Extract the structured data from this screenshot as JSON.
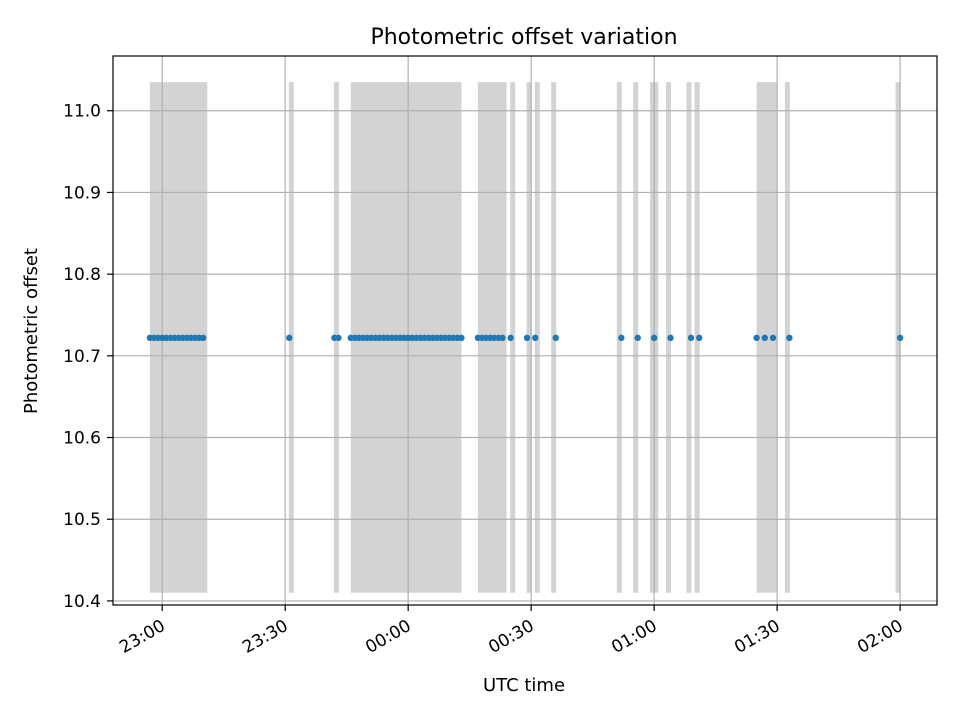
{
  "chart_data": {
    "type": "scatter",
    "title": "Photometric offset variation",
    "xlabel": "UTC time",
    "ylabel": "Photometric offset",
    "xlim": [
      "22:48",
      "02:09"
    ],
    "ylim": [
      10.395,
      11.067
    ],
    "grid": true,
    "x_ticks": [
      "23:00",
      "23:30",
      "00:00",
      "00:30",
      "01:00",
      "01:30",
      "02:00"
    ],
    "y_ticks": [
      "11.0",
      "10.9",
      "10.8",
      "10.7",
      "10.6",
      "10.5",
      "10.4"
    ],
    "shaded_band_y": [
      10.41,
      11.035
    ],
    "shaded_intervals": [
      [
        "22:57",
        "23:11"
      ],
      [
        "23:31",
        "23:32"
      ],
      [
        "23:42",
        "23:43"
      ],
      [
        "23:46",
        "00:13"
      ],
      [
        "00:17",
        "00:24"
      ],
      [
        "00:25",
        "00:26"
      ],
      [
        "00:29",
        "00:30"
      ],
      [
        "00:31",
        "00:32"
      ],
      [
        "00:35",
        "00:36"
      ],
      [
        "00:51",
        "00:52"
      ],
      [
        "00:55",
        "00:56"
      ],
      [
        "00:59",
        "01:01"
      ],
      [
        "01:03",
        "01:04"
      ],
      [
        "01:08",
        "01:09"
      ],
      [
        "01:10",
        "01:11"
      ],
      [
        "01:25",
        "01:30"
      ],
      [
        "01:32",
        "01:33"
      ],
      [
        "01:59",
        "02:00"
      ]
    ],
    "series": [
      {
        "color": "#1f77b4",
        "x": [
          "22:57",
          "22:58",
          "22:59",
          "23:00",
          "23:01",
          "23:02",
          "23:03",
          "23:04",
          "23:05",
          "23:06",
          "23:07",
          "23:08",
          "23:09",
          "23:10",
          "23:31",
          "23:42",
          "23:43",
          "23:46",
          "23:47",
          "23:48",
          "23:49",
          "23:50",
          "23:51",
          "23:52",
          "23:53",
          "23:54",
          "23:55",
          "23:56",
          "23:57",
          "23:58",
          "23:59",
          "00:00",
          "00:01",
          "00:02",
          "00:03",
          "00:04",
          "00:05",
          "00:06",
          "00:07",
          "00:08",
          "00:09",
          "00:10",
          "00:11",
          "00:12",
          "00:13",
          "00:17",
          "00:18",
          "00:19",
          "00:20",
          "00:21",
          "00:22",
          "00:23",
          "00:25",
          "00:29",
          "00:31",
          "00:36",
          "00:52",
          "00:56",
          "01:00",
          "01:04",
          "01:09",
          "01:11",
          "01:25",
          "01:27",
          "01:29",
          "01:33",
          "02:00"
        ],
        "y_constant": 10.722
      }
    ]
  }
}
